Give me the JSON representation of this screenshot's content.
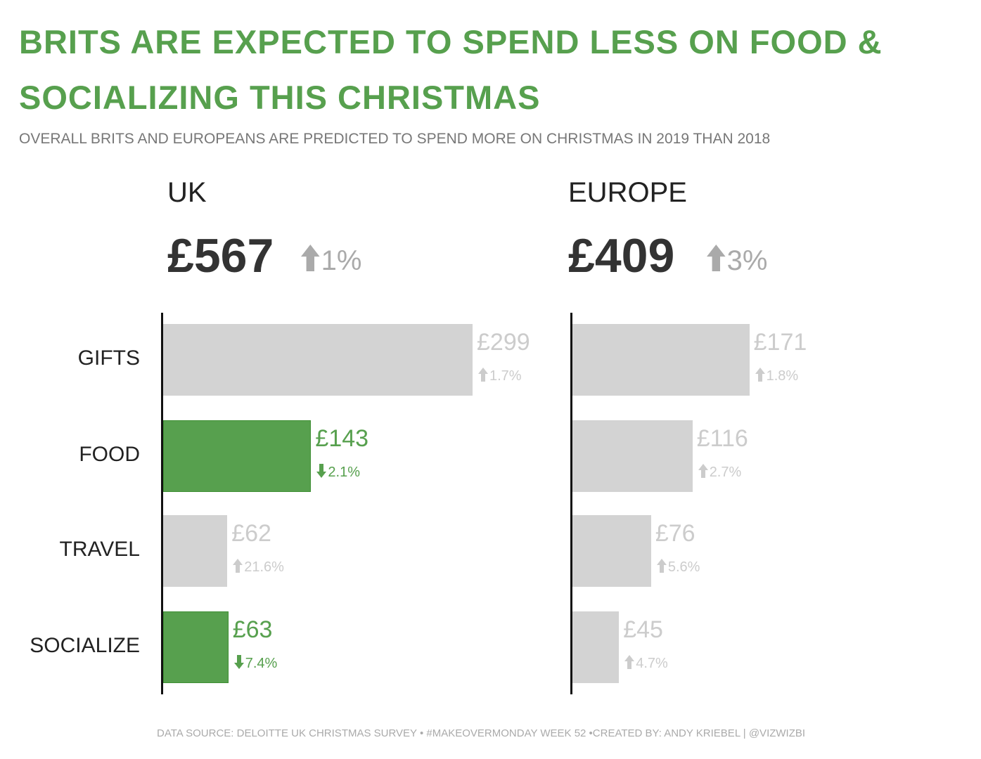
{
  "chart_data": {
    "type": "bar",
    "title": [
      "BRITS ARE EXPECTED TO SPEND LESS ON FOOD &",
      "SOCIALIZING THIS CHRISTMAS"
    ],
    "subtitle": "OVERALL BRITS AND EUROPEANS ARE PREDICTED TO SPEND MORE ON CHRISTMAS IN 2019 THAN 2018",
    "categories": [
      "GIFTS",
      "FOOD",
      "TRAVEL",
      "SOCIALIZE"
    ],
    "panels": [
      {
        "name": "UK",
        "total": "£567",
        "total_change": "1%",
        "total_direction": "up",
        "values": [
          299,
          143,
          62,
          63
        ],
        "value_labels": [
          "£299",
          "£143",
          "£62",
          "£63"
        ],
        "changes": [
          "1.7%",
          "2.1%",
          "21.6%",
          "7.4%"
        ],
        "directions": [
          "up",
          "down",
          "up",
          "down"
        ]
      },
      {
        "name": "EUROPE",
        "total": "£409",
        "total_change": "3%",
        "total_direction": "up",
        "values": [
          171,
          116,
          76,
          45
        ],
        "value_labels": [
          "£171",
          "£116",
          "£76",
          "£45"
        ],
        "changes": [
          "1.8%",
          "2.7%",
          "5.6%",
          "4.7%"
        ],
        "directions": [
          "up",
          "up",
          "up",
          "up"
        ]
      }
    ],
    "xlim": [
      0,
      299
    ],
    "grid": false
  },
  "colors": {
    "highlight": "#57a04e",
    "muted_bar": "#d3d3d3",
    "muted_text": "#cccccc"
  },
  "footer": "DATA SOURCE: DELOITTE UK CHRISTMAS SURVEY • #MAKEOVERMONDAY WEEK 52 •CREATED BY: ANDY KRIEBEL | @VIZWIZBI"
}
